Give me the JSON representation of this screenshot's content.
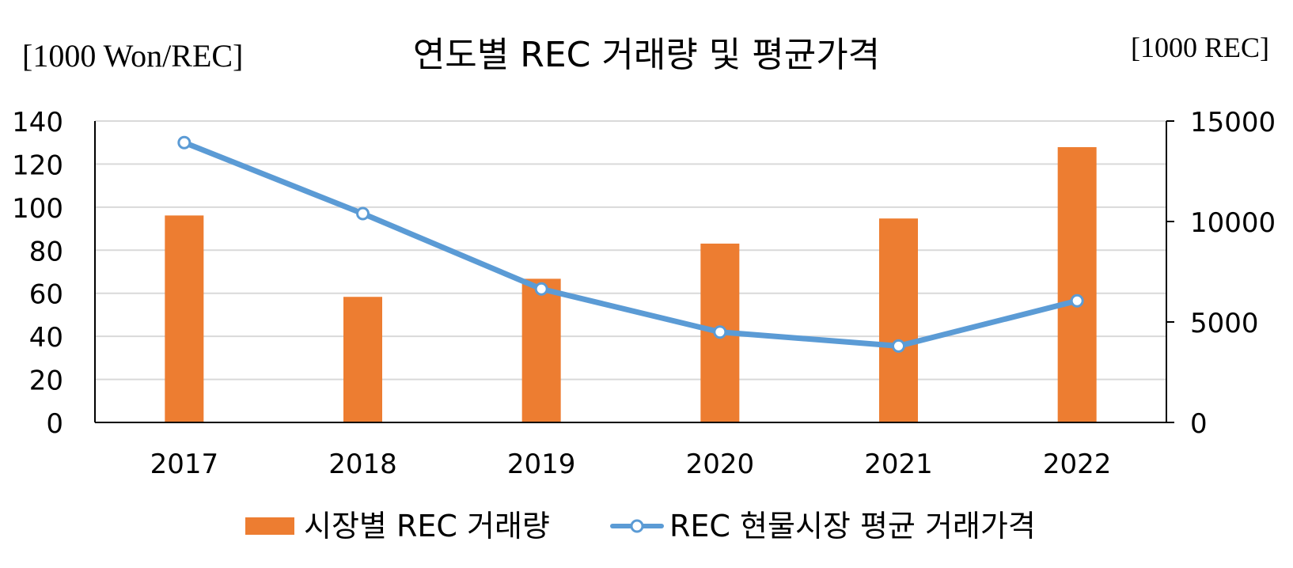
{
  "chart_data": {
    "type": "bar",
    "title": "연도별 REC 거래량 및 평균가격",
    "left_axis_unit": "[1000 Won/REC]",
    "right_axis_unit": "[1000 REC]",
    "categories": [
      "2017",
      "2018",
      "2019",
      "2020",
      "2021",
      "2022"
    ],
    "y_left": {
      "ticks": [
        "0",
        "20",
        "40",
        "60",
        "80",
        "100",
        "120",
        "140"
      ],
      "min": 0,
      "max": 140
    },
    "y_right": {
      "ticks": [
        "0",
        "5000",
        "10000",
        "15000"
      ],
      "min": 0,
      "max": 15000
    },
    "grid": true,
    "legend_position": "bottom",
    "series": [
      {
        "name": "시장별 REC 거래량",
        "type": "bar",
        "axis": "right",
        "color": "#ED7D31",
        "values": [
          10300,
          6250,
          7150,
          8900,
          10150,
          13700
        ]
      },
      {
        "name": "REC 현물시장 평균 거래가격",
        "type": "line",
        "axis": "left",
        "color": "#5B9BD5",
        "values": [
          130,
          97,
          62,
          42,
          35.5,
          56.5
        ]
      }
    ]
  }
}
